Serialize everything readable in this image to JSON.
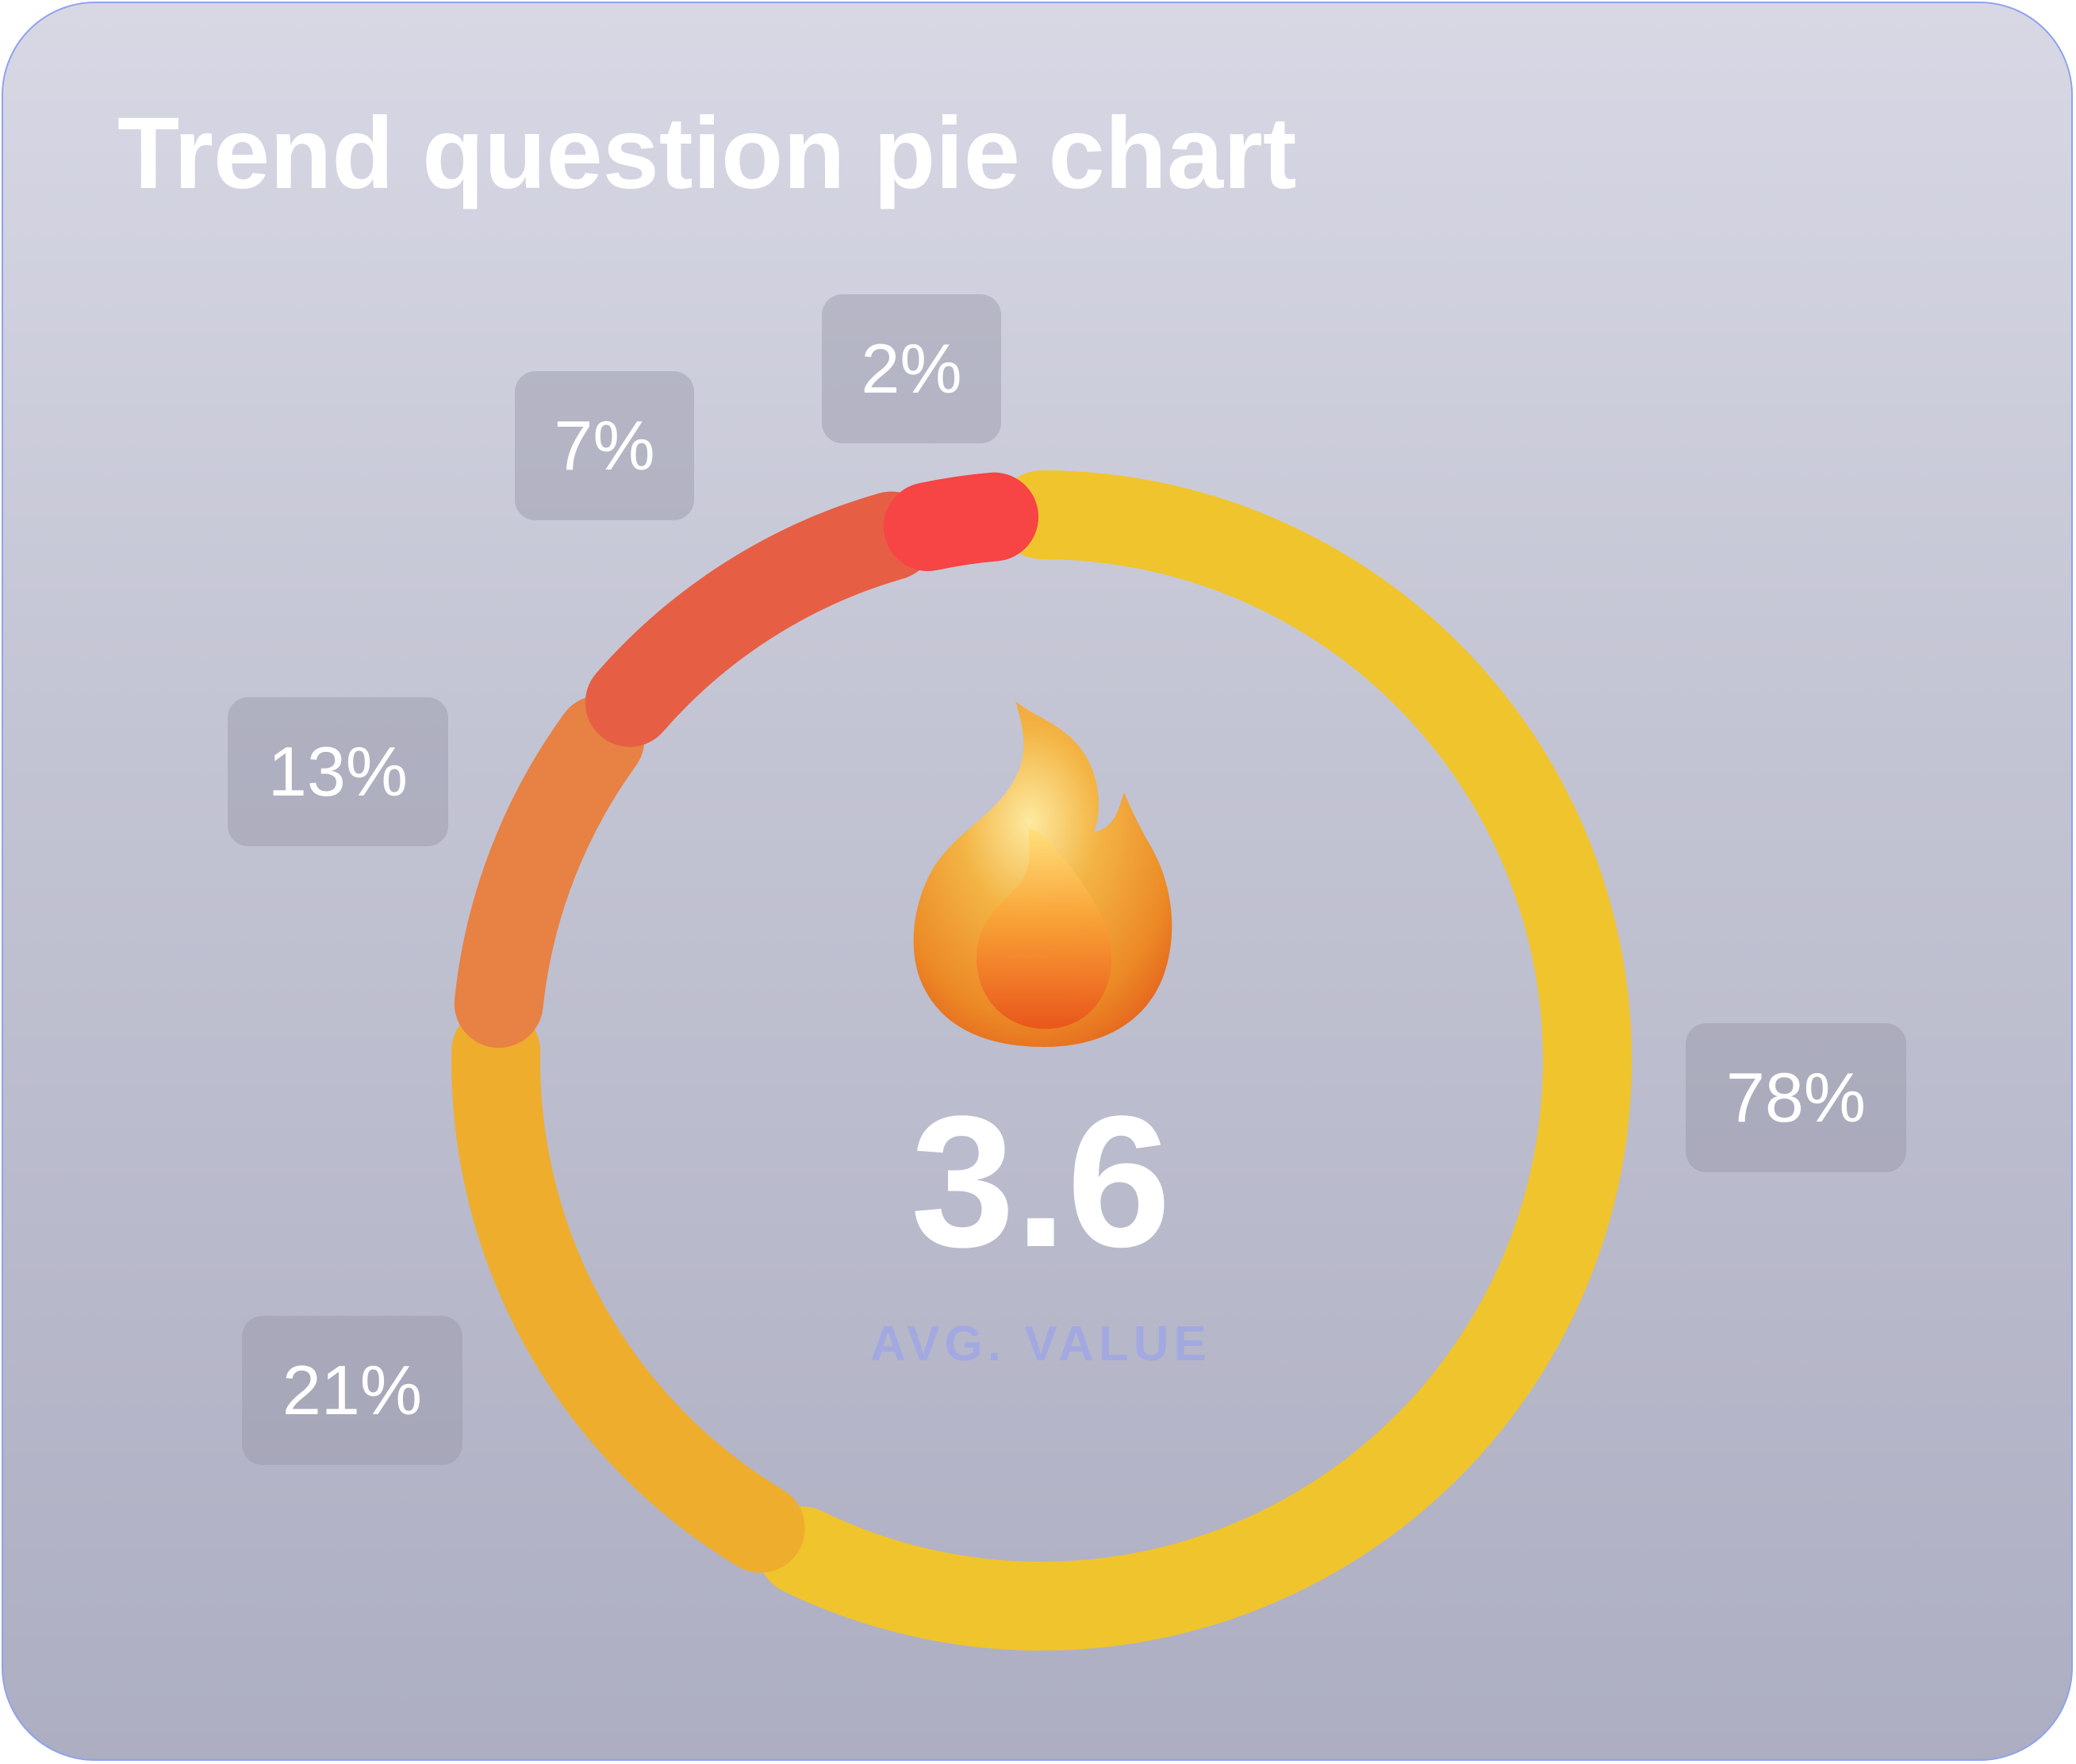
{
  "title": "Trend question pie chart",
  "center": {
    "value": "3.6",
    "label": "AVG. VALUE",
    "icon": "fire-icon"
  },
  "chart_data": {
    "type": "pie",
    "title": "Trend question pie chart",
    "style": "donut",
    "slices": [
      {
        "label": "78%",
        "value": 78,
        "color": "#f0c42c"
      },
      {
        "label": "21%",
        "value": 21,
        "color": "#eead2d"
      },
      {
        "label": "13%",
        "value": 13,
        "color": "#e78144"
      },
      {
        "label": "7%",
        "value": 7,
        "color": "#e65f44"
      },
      {
        "label": "2%",
        "value": 2,
        "color": "#f74444"
      }
    ],
    "ring_color": "#767681",
    "average": 3.6
  }
}
